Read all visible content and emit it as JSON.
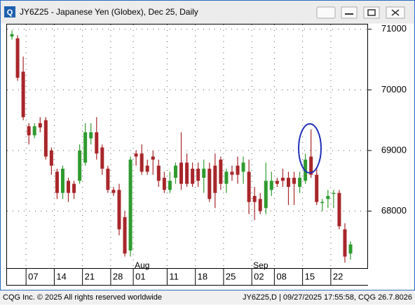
{
  "window_title": "JY6Z25 - Japanese Yen (Globex), Dec 25, Daily",
  "footer": {
    "left": "CQG Inc. © 2025 All rights reserved worldwide",
    "right": "JY6Z25,D | 09/27/2025 17:55:58, CQG 26.7.8026"
  },
  "chart_data": {
    "type": "candlestick",
    "categories": [
      null,
      null,
      null,
      "07",
      null,
      null,
      null,
      null,
      "14",
      null,
      null,
      null,
      null,
      "21",
      null,
      null,
      null,
      null,
      "28",
      null,
      null,
      null,
      "01",
      null,
      null,
      null,
      null,
      null,
      "11",
      null,
      null,
      null,
      null,
      "18",
      null,
      null,
      null,
      null,
      "25",
      null,
      null,
      null,
      null,
      "02",
      null,
      null,
      null,
      "08",
      null,
      null,
      null,
      null,
      "15",
      null,
      null,
      null,
      null,
      "22",
      null,
      null,
      null
    ],
    "month_labels": [
      {
        "text": "Aug",
        "at": "01"
      },
      {
        "text": "Sep",
        "at": "02"
      }
    ],
    "open": [
      70880,
      70850,
      70300,
      69400,
      69250,
      69450,
      69500,
      69000,
      68650,
      68300,
      68500,
      68450,
      68500,
      68800,
      69200,
      69300,
      69050,
      68700,
      68350,
      68350,
      67900,
      67350,
      68950,
      68950,
      68750,
      68900,
      68750,
      68550,
      68350,
      68550,
      68800,
      68800,
      68700,
      68700,
      68550,
      68700,
      68750,
      68850,
      68450,
      68650,
      68750,
      68650,
      68650,
      68250,
      68200,
      68050,
      68350,
      68500,
      68550,
      68550,
      68550,
      68400,
      68500,
      68900,
      68600,
      68150,
      68200,
      68300,
      68300,
      67700,
      67300
    ],
    "high": [
      70980,
      70900,
      70550,
      69450,
      69450,
      69550,
      69550,
      69050,
      68700,
      68750,
      68550,
      68500,
      69100,
      69450,
      69450,
      69550,
      69100,
      68750,
      68400,
      68450,
      68000,
      68900,
      69000,
      69100,
      68850,
      69000,
      68850,
      68650,
      68650,
      68800,
      69300,
      68950,
      68800,
      68800,
      68850,
      68800,
      68950,
      68900,
      68700,
      68750,
      68900,
      68900,
      68850,
      68400,
      68300,
      68800,
      68650,
      68550,
      68700,
      68650,
      68650,
      68650,
      68950,
      69350,
      68700,
      68200,
      68350,
      68350,
      68350,
      67800,
      67500
    ],
    "low": [
      70830,
      70150,
      69500,
      69100,
      69200,
      69300,
      68850,
      68600,
      68200,
      68200,
      68150,
      68200,
      68450,
      68750,
      69100,
      68850,
      68600,
      68300,
      68250,
      67600,
      67250,
      67250,
      68750,
      68600,
      68600,
      68600,
      68400,
      68300,
      68300,
      68450,
      68350,
      68400,
      68400,
      68400,
      68300,
      68150,
      68050,
      68350,
      68300,
      68500,
      68450,
      68450,
      67950,
      67850,
      67950,
      67950,
      68250,
      68400,
      68400,
      68100,
      68100,
      68300,
      68450,
      68550,
      68100,
      68000,
      68050,
      68050,
      67700,
      67150,
      67200
    ],
    "close": [
      70920,
      70200,
      69550,
      69250,
      69400,
      69380,
      68900,
      68750,
      68300,
      68700,
      68300,
      68300,
      69000,
      69300,
      69300,
      68950,
      68700,
      68350,
      68300,
      67700,
      67300,
      68850,
      68900,
      68650,
      68650,
      68850,
      68500,
      68350,
      68500,
      68750,
      68450,
      68450,
      68450,
      68500,
      68700,
      68200,
      68300,
      68450,
      68650,
      68600,
      68600,
      68800,
      68150,
      68150,
      68000,
      68500,
      68500,
      68450,
      68500,
      68400,
      68450,
      68550,
      68850,
      68600,
      68150,
      68150,
      68250,
      68300,
      67750,
      67250,
      67450
    ],
    "up_color": "#2f9b2f",
    "down_color": "#a8262a",
    "ylim": [
      67060,
      71090
    ],
    "yticks": [
      68000,
      69000,
      70000,
      71000
    ],
    "grid": true
  }
}
